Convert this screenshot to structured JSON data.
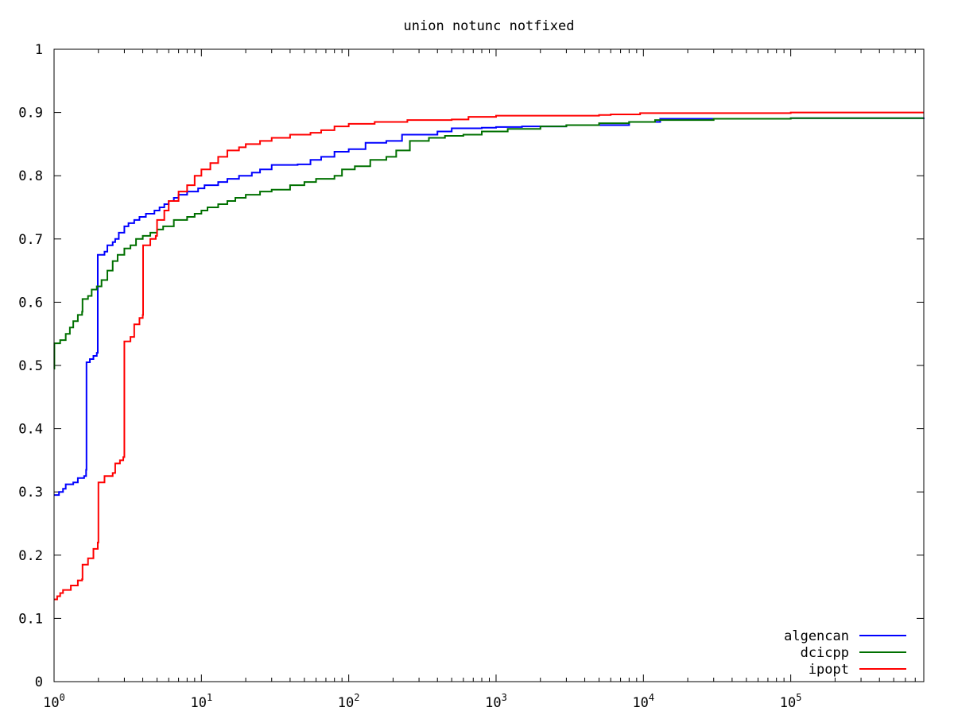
{
  "chart_data": {
    "type": "line",
    "title": "union notunc notfixed",
    "xlabel": "",
    "ylabel": "",
    "x_scale": "log",
    "xlim": [
      1,
      800000
    ],
    "ylim": [
      0,
      1
    ],
    "grid": false,
    "legend_position": "bottom-right",
    "y_ticks": [
      "0",
      "0.1",
      "0.2",
      "0.3",
      "0.4",
      "0.5",
      "0.6",
      "0.7",
      "0.8",
      "0.9",
      "1"
    ],
    "x_ticks": [
      {
        "value": 1,
        "base": "10",
        "exp": "0"
      },
      {
        "value": 10,
        "base": "10",
        "exp": "1"
      },
      {
        "value": 100,
        "base": "10",
        "exp": "2"
      },
      {
        "value": 1000,
        "base": "10",
        "exp": "3"
      },
      {
        "value": 10000,
        "base": "10",
        "exp": "4"
      },
      {
        "value": 100000,
        "base": "10",
        "exp": "5"
      }
    ],
    "series": [
      {
        "name": "algencan",
        "color": "#0000ff",
        "points": [
          [
            1,
            0.295
          ],
          [
            1.08,
            0.3
          ],
          [
            1.15,
            0.305
          ],
          [
            1.2,
            0.312
          ],
          [
            1.35,
            0.315
          ],
          [
            1.45,
            0.322
          ],
          [
            1.6,
            0.325
          ],
          [
            1.65,
            0.335
          ],
          [
            1.66,
            0.505
          ],
          [
            1.75,
            0.51
          ],
          [
            1.85,
            0.515
          ],
          [
            1.95,
            0.52
          ],
          [
            1.98,
            0.675
          ],
          [
            2.2,
            0.68
          ],
          [
            2.3,
            0.69
          ],
          [
            2.5,
            0.695
          ],
          [
            2.6,
            0.7
          ],
          [
            2.75,
            0.71
          ],
          [
            3.0,
            0.72
          ],
          [
            3.2,
            0.725
          ],
          [
            3.5,
            0.73
          ],
          [
            3.8,
            0.735
          ],
          [
            4.2,
            0.74
          ],
          [
            4.8,
            0.745
          ],
          [
            5.2,
            0.75
          ],
          [
            5.6,
            0.755
          ],
          [
            6.0,
            0.76
          ],
          [
            6.5,
            0.765
          ],
          [
            7.0,
            0.77
          ],
          [
            8.0,
            0.775
          ],
          [
            9.5,
            0.78
          ],
          [
            10.5,
            0.785
          ],
          [
            13,
            0.79
          ],
          [
            15,
            0.795
          ],
          [
            18,
            0.8
          ],
          [
            22,
            0.805
          ],
          [
            25,
            0.81
          ],
          [
            30,
            0.817
          ],
          [
            45,
            0.818
          ],
          [
            55,
            0.825
          ],
          [
            65,
            0.83
          ],
          [
            80,
            0.838
          ],
          [
            100,
            0.842
          ],
          [
            130,
            0.852
          ],
          [
            180,
            0.855
          ],
          [
            230,
            0.865
          ],
          [
            400,
            0.87
          ],
          [
            500,
            0.875
          ],
          [
            800,
            0.876
          ],
          [
            1000,
            0.877
          ],
          [
            1500,
            0.878
          ],
          [
            3000,
            0.88
          ],
          [
            8000,
            0.885
          ],
          [
            13000,
            0.89
          ],
          [
            100000,
            0.891
          ],
          [
            800000,
            0.892
          ]
        ]
      },
      {
        "name": "dcicpp",
        "color": "#007000",
        "points": [
          [
            1,
            0.495
          ],
          [
            1.005,
            0.535
          ],
          [
            1.1,
            0.54
          ],
          [
            1.2,
            0.55
          ],
          [
            1.28,
            0.56
          ],
          [
            1.35,
            0.57
          ],
          [
            1.45,
            0.58
          ],
          [
            1.55,
            0.585
          ],
          [
            1.56,
            0.605
          ],
          [
            1.7,
            0.61
          ],
          [
            1.8,
            0.62
          ],
          [
            1.95,
            0.625
          ],
          [
            2.1,
            0.635
          ],
          [
            2.3,
            0.65
          ],
          [
            2.5,
            0.665
          ],
          [
            2.7,
            0.675
          ],
          [
            3.0,
            0.685
          ],
          [
            3.3,
            0.69
          ],
          [
            3.6,
            0.7
          ],
          [
            4.0,
            0.705
          ],
          [
            4.5,
            0.71
          ],
          [
            5.0,
            0.715
          ],
          [
            5.5,
            0.72
          ],
          [
            6.5,
            0.73
          ],
          [
            8.0,
            0.735
          ],
          [
            9.0,
            0.74
          ],
          [
            10,
            0.745
          ],
          [
            11,
            0.75
          ],
          [
            13,
            0.755
          ],
          [
            15,
            0.76
          ],
          [
            17,
            0.765
          ],
          [
            20,
            0.77
          ],
          [
            25,
            0.775
          ],
          [
            30,
            0.778
          ],
          [
            40,
            0.785
          ],
          [
            50,
            0.79
          ],
          [
            60,
            0.795
          ],
          [
            80,
            0.8
          ],
          [
            90,
            0.81
          ],
          [
            110,
            0.815
          ],
          [
            140,
            0.825
          ],
          [
            180,
            0.83
          ],
          [
            210,
            0.84
          ],
          [
            260,
            0.855
          ],
          [
            350,
            0.86
          ],
          [
            450,
            0.863
          ],
          [
            600,
            0.865
          ],
          [
            800,
            0.87
          ],
          [
            1200,
            0.874
          ],
          [
            2000,
            0.878
          ],
          [
            3000,
            0.88
          ],
          [
            5000,
            0.883
          ],
          [
            8000,
            0.885
          ],
          [
            12000,
            0.888
          ],
          [
            30000,
            0.89
          ],
          [
            100000,
            0.891
          ],
          [
            800000,
            0.891
          ]
        ]
      },
      {
        "name": "ipopt",
        "color": "#ff0000",
        "points": [
          [
            1,
            0.13
          ],
          [
            1.05,
            0.135
          ],
          [
            1.1,
            0.14
          ],
          [
            1.15,
            0.145
          ],
          [
            1.3,
            0.152
          ],
          [
            1.45,
            0.16
          ],
          [
            1.55,
            0.162
          ],
          [
            1.56,
            0.185
          ],
          [
            1.7,
            0.195
          ],
          [
            1.85,
            0.21
          ],
          [
            1.98,
            0.22
          ],
          [
            2.0,
            0.315
          ],
          [
            2.2,
            0.325
          ],
          [
            2.5,
            0.33
          ],
          [
            2.6,
            0.345
          ],
          [
            2.8,
            0.35
          ],
          [
            2.95,
            0.355
          ],
          [
            3.0,
            0.538
          ],
          [
            3.3,
            0.545
          ],
          [
            3.5,
            0.565
          ],
          [
            3.8,
            0.575
          ],
          [
            4.0,
            0.58
          ],
          [
            4.02,
            0.69
          ],
          [
            4.5,
            0.7
          ],
          [
            4.9,
            0.705
          ],
          [
            5.0,
            0.73
          ],
          [
            5.6,
            0.745
          ],
          [
            6.0,
            0.76
          ],
          [
            7.0,
            0.775
          ],
          [
            8.0,
            0.785
          ],
          [
            9.0,
            0.8
          ],
          [
            10.0,
            0.81
          ],
          [
            11.5,
            0.82
          ],
          [
            13,
            0.83
          ],
          [
            15,
            0.84
          ],
          [
            18,
            0.845
          ],
          [
            20,
            0.85
          ],
          [
            25,
            0.855
          ],
          [
            30,
            0.86
          ],
          [
            40,
            0.865
          ],
          [
            55,
            0.868
          ],
          [
            65,
            0.872
          ],
          [
            80,
            0.878
          ],
          [
            100,
            0.882
          ],
          [
            150,
            0.885
          ],
          [
            250,
            0.888
          ],
          [
            500,
            0.889
          ],
          [
            650,
            0.893
          ],
          [
            1000,
            0.895
          ],
          [
            5000,
            0.896
          ],
          [
            6000,
            0.897
          ],
          [
            9500,
            0.899
          ],
          [
            100000,
            0.9
          ],
          [
            800000,
            0.9
          ]
        ]
      }
    ]
  }
}
